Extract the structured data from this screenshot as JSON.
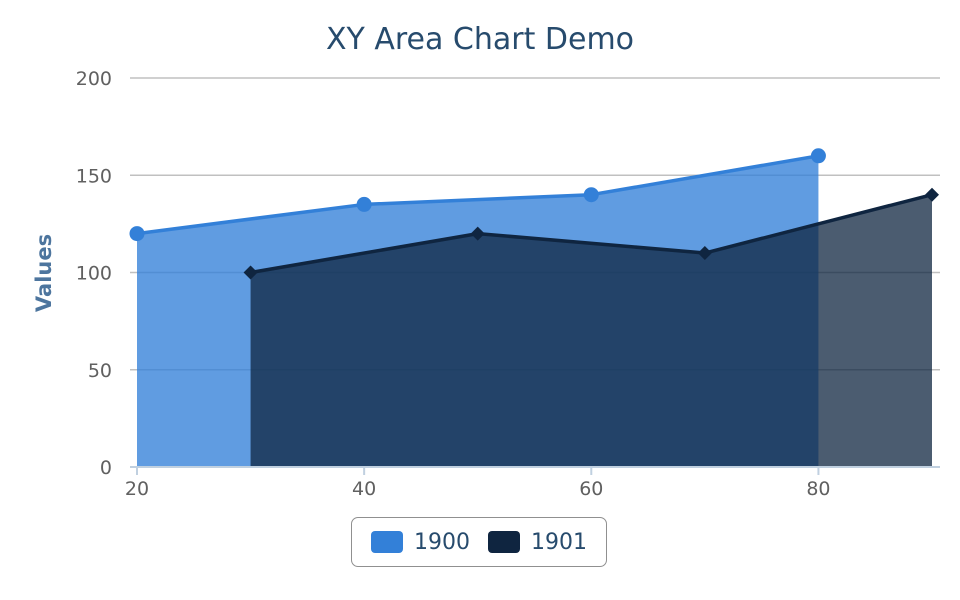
{
  "chart_data": {
    "type": "area",
    "title": "XY Area Chart Demo",
    "ylabel": "Values",
    "xlim": [
      20,
      90
    ],
    "ylim": [
      0,
      200
    ],
    "xticks": [
      20,
      40,
      60,
      80
    ],
    "yticks": [
      0,
      50,
      100,
      150,
      200
    ],
    "grid": true,
    "legend_position": "bottom-center",
    "series": [
      {
        "name": "1900",
        "color": "#3380d8",
        "fill": "#3380d8",
        "marker": "circle",
        "x": [
          20,
          40,
          60,
          80
        ],
        "y": [
          120,
          135,
          140,
          160
        ]
      },
      {
        "name": "1901",
        "color": "#0f2540",
        "fill": "#0f2540",
        "marker": "diamond",
        "x": [
          30,
          50,
          70,
          90
        ],
        "y": [
          100,
          120,
          110,
          140
        ]
      }
    ]
  }
}
